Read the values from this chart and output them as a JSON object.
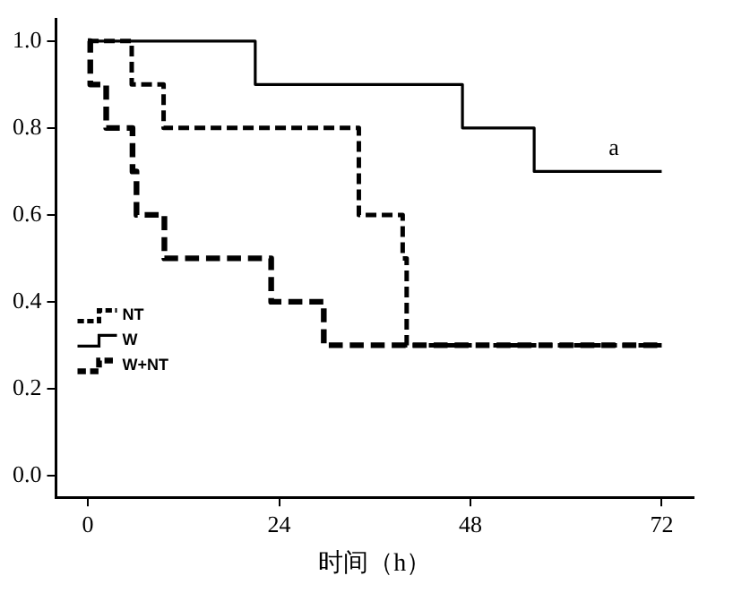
{
  "chart_data": {
    "type": "step",
    "xlabel": "时间（h）",
    "xlim": [
      -4,
      76
    ],
    "xticks": [
      0,
      24,
      48,
      72
    ],
    "ylim": [
      -0.05,
      1.05
    ],
    "yticks": [
      {
        "value": 0,
        "label": "0.0"
      },
      {
        "value": 0.2,
        "label": "0.2"
      },
      {
        "value": 0.4,
        "label": "0.4"
      },
      {
        "value": 0.6,
        "label": "0.6"
      },
      {
        "value": 0.8,
        "label": "0.8"
      },
      {
        "value": 1,
        "label": "1.0"
      }
    ],
    "grid": false,
    "legend": "bottom left",
    "marker": "none",
    "series": [
      {
        "name": "NT",
        "color": "#000000",
        "line_style": "dashed",
        "x": [
          0,
          5.5,
          9.5,
          34,
          39.5,
          40,
          72
        ],
        "values": [
          1,
          0.9,
          0.8,
          0.6,
          0.5,
          0.3,
          0.3
        ]
      },
      {
        "name": "W",
        "color": "#000000",
        "line_style": "solid",
        "x": [
          0,
          21,
          47,
          56,
          72
        ],
        "values": [
          1,
          0.9,
          0.8,
          0.7,
          0.7
        ]
      },
      {
        "name": "W+NT",
        "color": "#000000",
        "line_style": "dashed",
        "x": [
          0,
          0.3,
          2.3,
          5.6,
          6.1,
          9.6,
          23,
          29.6,
          72
        ],
        "values": [
          1,
          0.9,
          0.8,
          0.7,
          0.6,
          0.5,
          0.4,
          0.3,
          0.3
        ]
      }
    ],
    "annotations": [
      {
        "text": "a",
        "x": 66,
        "y": 0.7
      }
    ]
  }
}
